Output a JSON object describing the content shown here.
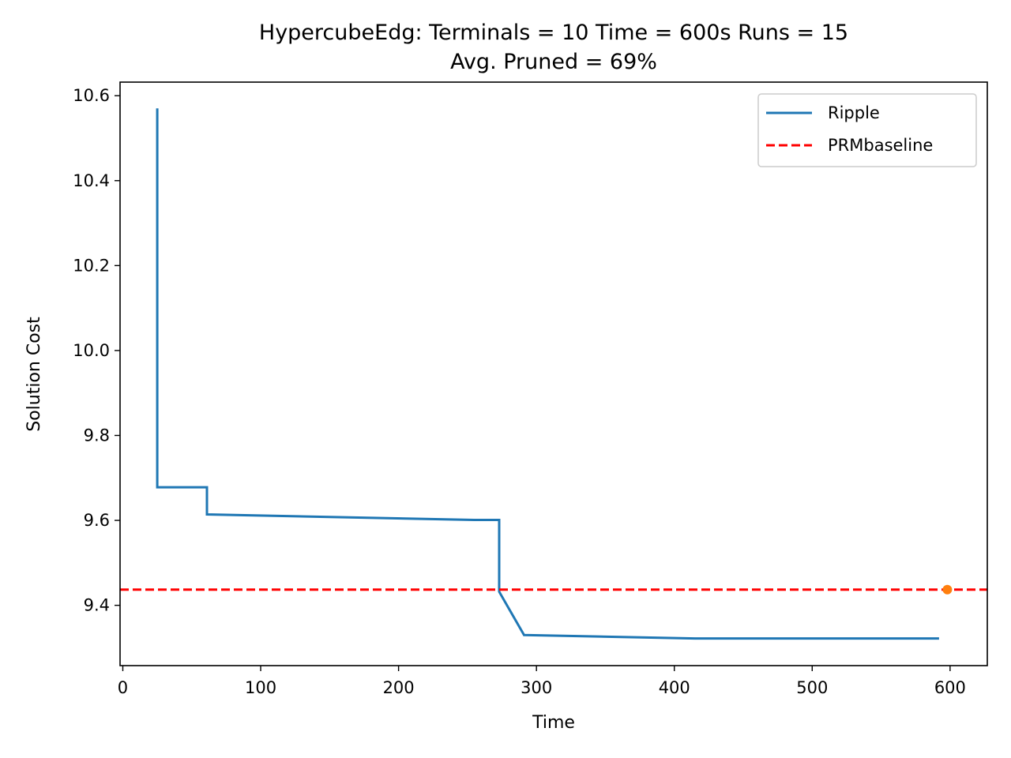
{
  "chart_data": {
    "type": "line",
    "title_line1": "HypercubeEdg:  Terminals = 10  Time = 600s  Runs = 15",
    "title_line2": "Avg. Pruned = 69%",
    "xlabel": "Time",
    "ylabel": "Solution Cost",
    "xlim": [
      -2,
      627
    ],
    "ylim": [
      9.258,
      10.632
    ],
    "xticks": [
      0,
      100,
      200,
      300,
      400,
      500,
      600
    ],
    "yticks": [
      9.4,
      9.6,
      9.8,
      10.0,
      10.2,
      10.4,
      10.6
    ],
    "ytick_labels": [
      "9.4",
      "9.6",
      "9.8",
      "10.0",
      "10.2",
      "10.4",
      "10.6"
    ],
    "grid": false,
    "legend_position": "top-right",
    "series": [
      {
        "name": "Ripple",
        "color": "#1f77b4",
        "style": "solid",
        "x": [
          25,
          25,
          61,
          61,
          255,
          273,
          273,
          291,
          415,
          592
        ],
        "y": [
          10.57,
          9.678,
          9.678,
          9.614,
          9.601,
          9.601,
          9.432,
          9.33,
          9.322,
          9.322
        ]
      },
      {
        "name": "PRMbaseline",
        "color": "#ff0000",
        "style": "dashed",
        "y": 9.437
      }
    ],
    "markers": [
      {
        "x": 598,
        "y": 9.437,
        "color": "#ff7f0e"
      }
    ]
  }
}
